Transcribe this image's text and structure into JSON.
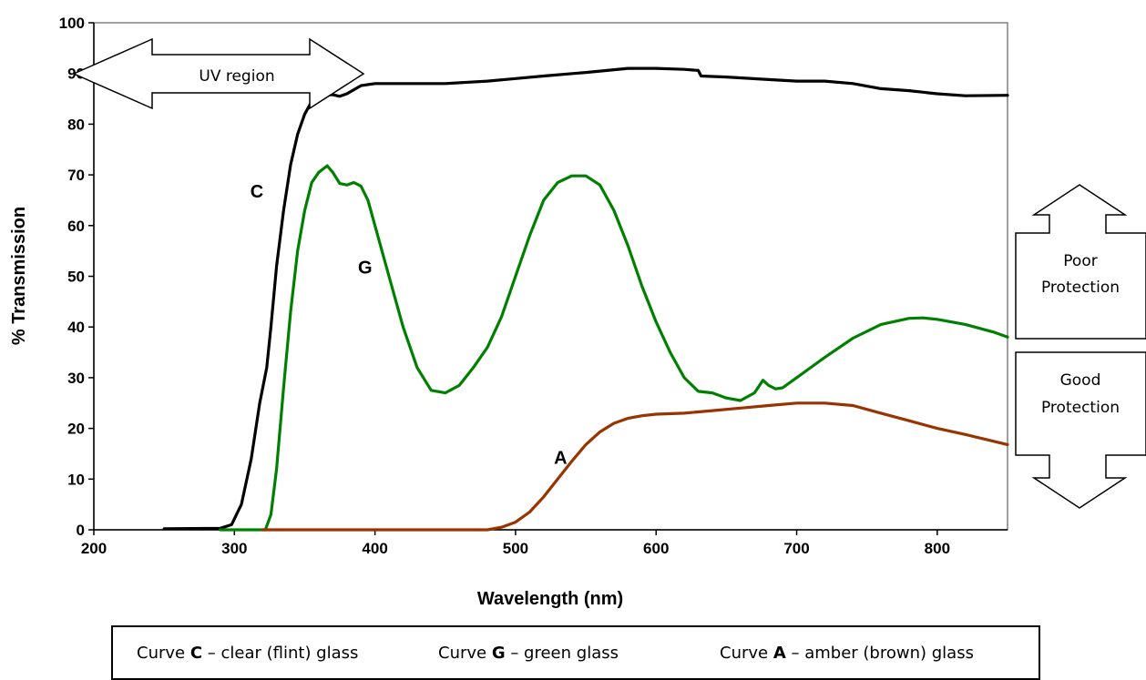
{
  "chart_data": {
    "type": "line",
    "title": "",
    "xlabel": "Wavelength (nm)",
    "ylabel": "% Transmission",
    "xlim": [
      200,
      850
    ],
    "ylim": [
      0,
      100
    ],
    "x_ticks": [
      200,
      300,
      400,
      500,
      600,
      700,
      800
    ],
    "y_ticks": [
      0,
      10,
      20,
      30,
      40,
      50,
      60,
      70,
      80,
      90,
      100
    ],
    "grid": false,
    "legend_position": "bottom",
    "series": [
      {
        "name": "C",
        "color": "#000000",
        "points": [
          [
            250,
            0.2
          ],
          [
            290,
            0.3
          ],
          [
            298,
            1
          ],
          [
            305,
            5
          ],
          [
            312,
            14
          ],
          [
            318,
            25
          ],
          [
            323,
            32
          ],
          [
            326,
            40
          ],
          [
            330,
            52
          ],
          [
            335,
            63
          ],
          [
            340,
            72
          ],
          [
            345,
            78
          ],
          [
            350,
            82
          ],
          [
            355,
            84.5
          ],
          [
            360,
            85.8
          ],
          [
            370,
            85.8
          ],
          [
            375,
            85.5
          ],
          [
            380,
            86
          ],
          [
            390,
            87.6
          ],
          [
            400,
            88
          ],
          [
            420,
            88
          ],
          [
            450,
            88
          ],
          [
            480,
            88.5
          ],
          [
            500,
            89
          ],
          [
            520,
            89.5
          ],
          [
            550,
            90.2
          ],
          [
            580,
            91
          ],
          [
            600,
            91
          ],
          [
            620,
            90.8
          ],
          [
            630,
            90.6
          ],
          [
            632,
            89.5
          ],
          [
            650,
            89.3
          ],
          [
            680,
            88.8
          ],
          [
            700,
            88.5
          ],
          [
            720,
            88.5
          ],
          [
            740,
            88
          ],
          [
            760,
            87
          ],
          [
            780,
            86.6
          ],
          [
            800,
            86
          ],
          [
            820,
            85.6
          ],
          [
            850,
            85.7
          ]
        ]
      },
      {
        "name": "G",
        "color": "#008000",
        "points": [
          [
            290,
            0
          ],
          [
            322,
            0
          ],
          [
            326,
            3
          ],
          [
            330,
            12
          ],
          [
            335,
            28
          ],
          [
            340,
            43
          ],
          [
            345,
            55
          ],
          [
            350,
            63
          ],
          [
            355,
            68.5
          ],
          [
            360,
            70.5
          ],
          [
            366,
            71.8
          ],
          [
            370,
            70.5
          ],
          [
            375,
            68.3
          ],
          [
            380,
            68
          ],
          [
            385,
            68.5
          ],
          [
            390,
            67.8
          ],
          [
            395,
            65
          ],
          [
            400,
            60
          ],
          [
            410,
            50
          ],
          [
            420,
            40
          ],
          [
            430,
            32
          ],
          [
            440,
            27.5
          ],
          [
            450,
            27
          ],
          [
            460,
            28.5
          ],
          [
            470,
            32
          ],
          [
            480,
            36
          ],
          [
            490,
            42
          ],
          [
            500,
            50
          ],
          [
            510,
            58
          ],
          [
            520,
            65
          ],
          [
            530,
            68.5
          ],
          [
            540,
            69.8
          ],
          [
            550,
            69.8
          ],
          [
            560,
            68
          ],
          [
            570,
            63
          ],
          [
            580,
            56
          ],
          [
            590,
            48
          ],
          [
            600,
            41
          ],
          [
            610,
            35
          ],
          [
            620,
            30
          ],
          [
            630,
            27.3
          ],
          [
            640,
            27
          ],
          [
            650,
            26
          ],
          [
            660,
            25.5
          ],
          [
            670,
            27
          ],
          [
            676,
            29.5
          ],
          [
            680,
            28.5
          ],
          [
            685,
            27.8
          ],
          [
            690,
            28
          ],
          [
            700,
            30
          ],
          [
            720,
            34
          ],
          [
            740,
            37.8
          ],
          [
            760,
            40.5
          ],
          [
            780,
            41.7
          ],
          [
            790,
            41.8
          ],
          [
            800,
            41.5
          ],
          [
            820,
            40.5
          ],
          [
            840,
            39
          ],
          [
            850,
            38
          ]
        ]
      },
      {
        "name": "A",
        "color": "#993300",
        "points": [
          [
            320,
            0
          ],
          [
            480,
            0
          ],
          [
            490,
            0.5
          ],
          [
            500,
            1.5
          ],
          [
            510,
            3.5
          ],
          [
            520,
            6.5
          ],
          [
            530,
            10
          ],
          [
            540,
            13.5
          ],
          [
            550,
            16.8
          ],
          [
            560,
            19.3
          ],
          [
            570,
            21
          ],
          [
            580,
            22
          ],
          [
            590,
            22.5
          ],
          [
            600,
            22.8
          ],
          [
            620,
            23
          ],
          [
            640,
            23.5
          ],
          [
            660,
            24
          ],
          [
            680,
            24.5
          ],
          [
            700,
            25
          ],
          [
            710,
            25
          ],
          [
            720,
            25
          ],
          [
            740,
            24.5
          ],
          [
            760,
            23
          ],
          [
            780,
            21.5
          ],
          [
            800,
            20
          ],
          [
            820,
            18.8
          ],
          [
            850,
            16.8
          ]
        ]
      }
    ],
    "annotations": {
      "curve_labels": [
        {
          "text": "C",
          "x": 316,
          "y": 65.5
        },
        {
          "text": "G",
          "x": 393,
          "y": 50.5
        },
        {
          "text": "A",
          "x": 532,
          "y": 13
        }
      ],
      "uv_region": {
        "text": "UV region",
        "x_start": 200,
        "x_end": 400
      },
      "poor_protection": {
        "line1": "Poor",
        "line2": "Protection"
      },
      "good_protection": {
        "line1": "Good",
        "line2": "Protection"
      }
    }
  },
  "legend": {
    "items": [
      {
        "prefix": "Curve ",
        "bold": "C",
        "suffix": " – clear (flint) glass"
      },
      {
        "prefix": "Curve ",
        "bold": "G",
        "suffix": " – green glass"
      },
      {
        "prefix": "Curve ",
        "bold": "A",
        "suffix": " – amber (brown) glass"
      }
    ]
  }
}
